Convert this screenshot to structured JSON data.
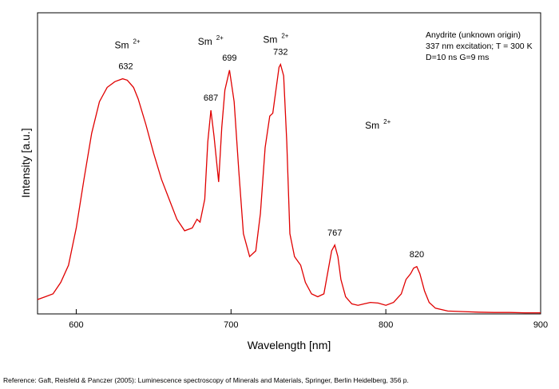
{
  "chart_data": {
    "type": "line",
    "xlabel": "Wavelength [nm]",
    "ylabel": "Intensity [a.u.]",
    "xlim": [
      575,
      900
    ],
    "ylim": [
      0,
      1.05
    ],
    "xticks": [
      600,
      700,
      800,
      900
    ],
    "y_ticks_shown": false,
    "grid": false,
    "series_color": "#e00000",
    "series": [
      {
        "x": [
          575,
          580,
          585,
          590,
          595,
          600,
          605,
          610,
          615,
          620,
          625,
          630,
          633,
          637,
          640,
          645,
          650,
          655,
          660,
          665,
          670,
          675,
          678,
          680,
          683,
          685,
          687,
          689,
          692,
          694,
          696,
          699,
          702,
          705,
          708,
          712,
          716,
          719,
          722,
          725,
          727,
          729,
          731,
          732,
          734,
          736,
          738,
          741,
          745,
          748,
          752,
          756,
          760,
          763,
          765,
          767,
          769,
          771,
          774,
          778,
          782,
          786,
          790,
          795,
          800,
          805,
          810,
          813,
          816,
          818,
          820,
          822,
          825,
          828,
          832,
          840,
          850,
          860,
          870,
          880,
          890,
          900
        ],
        "y": [
          0.05,
          0.06,
          0.07,
          0.11,
          0.17,
          0.3,
          0.47,
          0.63,
          0.74,
          0.79,
          0.81,
          0.82,
          0.815,
          0.79,
          0.75,
          0.66,
          0.56,
          0.47,
          0.4,
          0.33,
          0.29,
          0.3,
          0.33,
          0.32,
          0.4,
          0.6,
          0.71,
          0.62,
          0.46,
          0.65,
          0.78,
          0.85,
          0.74,
          0.5,
          0.28,
          0.2,
          0.22,
          0.35,
          0.58,
          0.69,
          0.7,
          0.78,
          0.86,
          0.87,
          0.83,
          0.6,
          0.28,
          0.2,
          0.17,
          0.11,
          0.07,
          0.06,
          0.07,
          0.16,
          0.22,
          0.24,
          0.2,
          0.12,
          0.06,
          0.035,
          0.03,
          0.035,
          0.04,
          0.038,
          0.03,
          0.04,
          0.07,
          0.12,
          0.14,
          0.16,
          0.165,
          0.14,
          0.08,
          0.04,
          0.02,
          0.01,
          0.008,
          0.006,
          0.005,
          0.005,
          0.004,
          0.004
        ]
      }
    ],
    "peak_labels": [
      {
        "x": 632,
        "y": 0.82,
        "text": "632"
      },
      {
        "x": 687,
        "y": 0.71,
        "text": "687"
      },
      {
        "x": 699,
        "y": 0.85,
        "text": "699"
      },
      {
        "x": 732,
        "y": 0.87,
        "text": "732"
      },
      {
        "x": 767,
        "y": 0.24,
        "text": "767"
      },
      {
        "x": 820,
        "y": 0.165,
        "text": "820"
      }
    ],
    "ion_labels": [
      {
        "x": 632,
        "y": 0.82,
        "base": "Sm",
        "sup": "2+"
      },
      {
        "x": 693,
        "y": 0.85,
        "base": "Sm",
        "sup": "2+"
      },
      {
        "x": 732,
        "y": 0.87,
        "base": "Sm",
        "sup": "2+"
      },
      {
        "x": 767,
        "y": 0.24,
        "base": "Sm",
        "sup": "2+"
      }
    ],
    "info_lines": [
      "Anydrite (unknown origin)",
      "337 nm excitation; T = 300 K",
      "D=10 ns G=9 ms"
    ]
  },
  "reference": "Reference: Gaft, Reisfeld & Panczer (2005): Luminescence spectroscopy of Minerals and Materials, Springer, Berlin Heidelberg, 356 p."
}
